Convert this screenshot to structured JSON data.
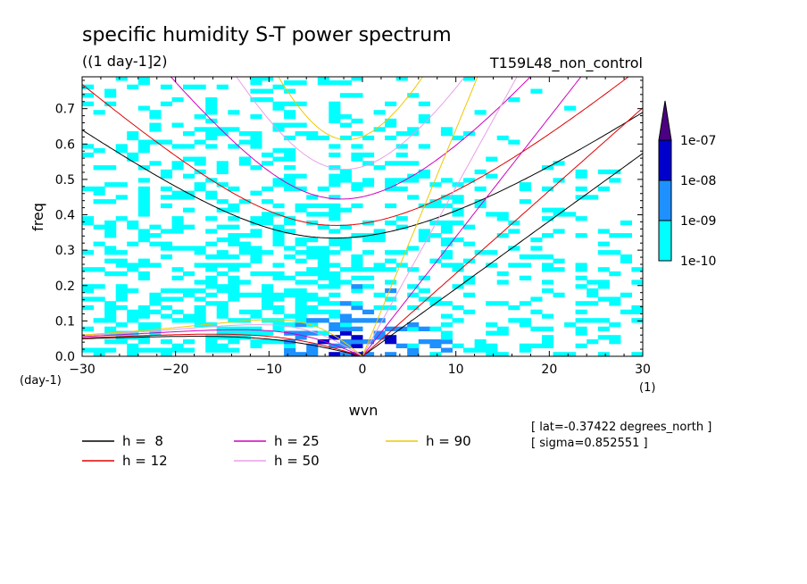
{
  "chart_data": {
    "type": "heatmap",
    "title": "specific humidity S-T power spectrum",
    "subtitle": "((1 day-1]2)",
    "run_label": "T159L48_non_control",
    "xlabel": "wvn",
    "ylabel": "freq",
    "x_unit": "(1)",
    "y_unit": "(day-1)",
    "xlim": [
      -30,
      30
    ],
    "ylim": [
      0,
      0.79
    ],
    "x_ticks": [
      -30,
      -20,
      -10,
      0,
      10,
      20,
      30
    ],
    "x_tick_labels": [
      "−30",
      "−20",
      "−10",
      "0",
      "10",
      "20",
      "30"
    ],
    "y_ticks": [
      0,
      0.1,
      0.2,
      0.3,
      0.4,
      0.5,
      0.6,
      0.7
    ],
    "y_tick_labels": [
      "0.0",
      "0.1",
      "0.2",
      "0.3",
      "0.4",
      "0.5",
      "0.6",
      "0.7"
    ],
    "colorbar": {
      "levels": [
        "1e-10",
        "1e-09",
        "1e-08",
        "1e-07"
      ],
      "colors": [
        "#00ffff",
        "#1e90ff",
        "#0000cd",
        "#4b0082"
      ]
    },
    "dispersion_curves": [
      {
        "name": "h =  8",
        "h": 8,
        "color": "#000000"
      },
      {
        "name": "h = 12",
        "h": 12,
        "color": "#e00000"
      },
      {
        "name": "h = 25",
        "h": 25,
        "color": "#d000c0"
      },
      {
        "name": "h = 50",
        "h": 50,
        "color": "#e8a0e8"
      },
      {
        "name": "h = 90",
        "h": 90,
        "color": "#f0c800"
      }
    ],
    "annotations": [
      "[ lat=-0.37422 degrees_north ]",
      "[ sigma=0.852551 ]"
    ]
  }
}
